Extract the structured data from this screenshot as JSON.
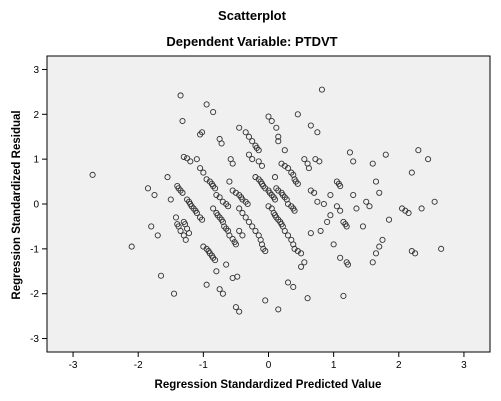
{
  "chart_data": {
    "type": "scatter",
    "title": "Scatterplot",
    "subtitle": "Dependent Variable: PTDVT",
    "xlabel": "Regression Standardized Predicted Value",
    "ylabel": "Regression Standardized Residual",
    "xlim": [
      -3.4,
      3.4
    ],
    "ylim": [
      -3.3,
      3.3
    ],
    "xticks": [
      -3,
      -2,
      -1,
      0,
      1,
      2,
      3
    ],
    "yticks": [
      -3,
      -2,
      -1,
      0,
      1,
      2,
      3
    ],
    "grid": false,
    "colors": {
      "plot_background": "#f0f0f0",
      "marker_stroke": "#333333",
      "axis": "#000000"
    },
    "points": [
      [
        -2.7,
        0.65
      ],
      [
        -2.1,
        -0.95
      ],
      [
        -1.85,
        0.35
      ],
      [
        -1.8,
        -0.5
      ],
      [
        -1.75,
        0.2
      ],
      [
        -1.7,
        -0.7
      ],
      [
        -1.65,
        -1.6
      ],
      [
        -1.55,
        0.6
      ],
      [
        -1.5,
        0.1
      ],
      [
        -1.45,
        -2.0
      ],
      [
        -1.4,
        0.4
      ],
      [
        -1.38,
        0.35
      ],
      [
        -1.35,
        0.3
      ],
      [
        -1.32,
        0.25
      ],
      [
        -1.42,
        -0.3
      ],
      [
        -1.4,
        -0.45
      ],
      [
        -1.38,
        -0.5
      ],
      [
        -1.35,
        -0.6
      ],
      [
        -1.3,
        -0.7
      ],
      [
        -1.27,
        -0.8
      ],
      [
        -1.35,
        2.42
      ],
      [
        -1.32,
        1.85
      ],
      [
        -1.3,
        1.05
      ],
      [
        -1.25,
        1.02
      ],
      [
        -1.2,
        0.95
      ],
      [
        -1.25,
        0.1
      ],
      [
        -1.22,
        0.05
      ],
      [
        -1.2,
        0.0
      ],
      [
        -1.18,
        -0.05
      ],
      [
        -1.15,
        -0.1
      ],
      [
        -1.12,
        -0.15
      ],
      [
        -1.1,
        -0.2
      ],
      [
        -1.05,
        -0.3
      ],
      [
        -1.02,
        -0.35
      ],
      [
        -1.3,
        -0.4
      ],
      [
        -1.28,
        -0.45
      ],
      [
        -1.25,
        -0.55
      ],
      [
        -1.22,
        -0.65
      ],
      [
        -1.1,
        1.0
      ],
      [
        -1.05,
        1.55
      ],
      [
        -1.02,
        1.6
      ],
      [
        -1.05,
        0.8
      ],
      [
        -1.0,
        0.7
      ],
      [
        -0.95,
        0.55
      ],
      [
        -0.9,
        0.5
      ],
      [
        -0.87,
        0.45
      ],
      [
        -0.85,
        0.4
      ],
      [
        -0.82,
        0.35
      ],
      [
        -0.95,
        2.22
      ],
      [
        -0.85,
        2.05
      ],
      [
        -0.75,
        1.45
      ],
      [
        -0.72,
        1.35
      ],
      [
        -0.8,
        0.2
      ],
      [
        -0.75,
        0.15
      ],
      [
        -0.7,
        0.05
      ],
      [
        -0.65,
        0.0
      ],
      [
        -0.62,
        -0.05
      ],
      [
        -1.0,
        -0.95
      ],
      [
        -0.95,
        -1.0
      ],
      [
        -0.92,
        -1.05
      ],
      [
        -0.9,
        -1.1
      ],
      [
        -0.87,
        -1.15
      ],
      [
        -0.85,
        -1.2
      ],
      [
        -0.82,
        -1.25
      ],
      [
        -0.95,
        -1.8
      ],
      [
        -0.8,
        -1.5
      ],
      [
        -0.75,
        -1.9
      ],
      [
        -0.7,
        -2.0
      ],
      [
        -0.65,
        -1.35
      ],
      [
        -0.55,
        -1.65
      ],
      [
        -0.5,
        -2.3
      ],
      [
        -0.45,
        -2.4
      ],
      [
        -0.48,
        -1.62
      ],
      [
        -0.85,
        -0.1
      ],
      [
        -0.8,
        -0.2
      ],
      [
        -0.78,
        -0.25
      ],
      [
        -0.75,
        -0.3
      ],
      [
        -0.72,
        -0.35
      ],
      [
        -0.7,
        -0.4
      ],
      [
        -0.68,
        -0.5
      ],
      [
        -0.65,
        -0.55
      ],
      [
        -0.62,
        -0.6
      ],
      [
        -0.6,
        -0.7
      ],
      [
        -0.55,
        -0.78
      ],
      [
        -0.52,
        -0.85
      ],
      [
        -0.5,
        -0.9
      ],
      [
        -0.58,
        1.0
      ],
      [
        -0.55,
        0.9
      ],
      [
        -0.6,
        0.5
      ],
      [
        -0.55,
        0.3
      ],
      [
        -0.5,
        0.25
      ],
      [
        -0.45,
        0.2
      ],
      [
        -0.42,
        0.15
      ],
      [
        -0.4,
        0.1
      ],
      [
        -0.35,
        0.05
      ],
      [
        -0.32,
        0.0
      ],
      [
        -0.45,
        1.7
      ],
      [
        -0.35,
        1.6
      ],
      [
        -0.3,
        1.5
      ],
      [
        -0.25,
        1.4
      ],
      [
        -0.2,
        1.3
      ],
      [
        -0.18,
        1.25
      ],
      [
        -0.15,
        1.2
      ],
      [
        -0.3,
        1.1
      ],
      [
        -0.25,
        1.0
      ],
      [
        -0.15,
        0.95
      ],
      [
        -0.1,
        0.85
      ],
      [
        -0.45,
        -0.1
      ],
      [
        -0.4,
        -0.2
      ],
      [
        -0.35,
        -0.3
      ],
      [
        -0.3,
        -0.4
      ],
      [
        -0.25,
        -0.5
      ],
      [
        -0.2,
        -0.6
      ],
      [
        -0.15,
        -0.7
      ],
      [
        -0.12,
        -0.8
      ],
      [
        -0.1,
        -0.9
      ],
      [
        -0.08,
        -1.0
      ],
      [
        -0.05,
        -1.05
      ],
      [
        -0.45,
        -0.6
      ],
      [
        -0.4,
        -0.7
      ],
      [
        -0.2,
        0.6
      ],
      [
        -0.15,
        0.55
      ],
      [
        -0.12,
        0.5
      ],
      [
        -0.1,
        0.45
      ],
      [
        -0.08,
        0.4
      ],
      [
        -0.05,
        0.35
      ],
      [
        0.0,
        0.3
      ],
      [
        0.02,
        0.25
      ],
      [
        0.05,
        0.2
      ],
      [
        0.08,
        0.15
      ],
      [
        0.1,
        0.1
      ],
      [
        0.0,
        1.95
      ],
      [
        0.05,
        1.85
      ],
      [
        0.12,
        1.7
      ],
      [
        0.15,
        1.5
      ],
      [
        0.25,
        1.2
      ],
      [
        0.15,
        1.4
      ],
      [
        0.2,
        0.9
      ],
      [
        0.25,
        0.85
      ],
      [
        0.3,
        0.8
      ],
      [
        0.35,
        0.7
      ],
      [
        0.38,
        0.65
      ],
      [
        0.4,
        0.55
      ],
      [
        0.42,
        0.5
      ],
      [
        0.45,
        0.45
      ],
      [
        0.1,
        0.6
      ],
      [
        0.12,
        0.35
      ],
      [
        0.15,
        0.3
      ],
      [
        0.2,
        0.25
      ],
      [
        0.22,
        0.2
      ],
      [
        0.25,
        0.15
      ],
      [
        0.28,
        0.1
      ],
      [
        0.3,
        0.0
      ],
      [
        0.35,
        -0.05
      ],
      [
        0.38,
        -0.1
      ],
      [
        0.4,
        -0.15
      ],
      [
        0.0,
        -0.05
      ],
      [
        0.05,
        -0.1
      ],
      [
        0.08,
        -0.2
      ],
      [
        0.1,
        -0.25
      ],
      [
        0.12,
        -0.3
      ],
      [
        0.15,
        -0.35
      ],
      [
        0.18,
        -0.4
      ],
      [
        0.2,
        -0.45
      ],
      [
        0.22,
        -0.5
      ],
      [
        0.25,
        -0.6
      ],
      [
        0.3,
        -0.7
      ],
      [
        0.35,
        -0.8
      ],
      [
        0.38,
        -0.9
      ],
      [
        0.4,
        -1.0
      ],
      [
        0.45,
        -1.05
      ],
      [
        0.5,
        -1.1
      ],
      [
        -0.05,
        -2.15
      ],
      [
        0.15,
        -2.35
      ],
      [
        0.3,
        -1.75
      ],
      [
        0.38,
        -1.85
      ],
      [
        0.5,
        -1.4
      ],
      [
        0.55,
        -1.3
      ],
      [
        0.6,
        -2.1
      ],
      [
        0.45,
        2.0
      ],
      [
        0.65,
        1.75
      ],
      [
        0.75,
        1.6
      ],
      [
        0.82,
        2.55
      ],
      [
        0.55,
        1.0
      ],
      [
        0.6,
        0.9
      ],
      [
        0.65,
        0.3
      ],
      [
        0.7,
        0.25
      ],
      [
        0.75,
        0.05
      ],
      [
        0.65,
        -0.65
      ],
      [
        0.72,
        1.0
      ],
      [
        0.78,
        0.95
      ],
      [
        0.62,
        0.8
      ],
      [
        1.05,
        0.5
      ],
      [
        1.08,
        0.45
      ],
      [
        1.1,
        0.4
      ],
      [
        1.05,
        -0.05
      ],
      [
        1.1,
        -0.15
      ],
      [
        1.15,
        -0.4
      ],
      [
        1.18,
        -0.45
      ],
      [
        1.2,
        -0.5
      ],
      [
        1.1,
        -1.2
      ],
      [
        1.15,
        -2.05
      ],
      [
        1.2,
        -1.3
      ],
      [
        1.22,
        -1.35
      ],
      [
        1.25,
        1.15
      ],
      [
        1.3,
        0.95
      ],
      [
        1.3,
        0.2
      ],
      [
        1.35,
        -0.1
      ],
      [
        1.45,
        -0.5
      ],
      [
        1.5,
        0.05
      ],
      [
        1.55,
        -0.05
      ],
      [
        1.6,
        0.9
      ],
      [
        1.65,
        0.5
      ],
      [
        1.7,
        0.25
      ],
      [
        1.8,
        1.1
      ],
      [
        1.85,
        -0.35
      ],
      [
        1.75,
        -0.8
      ],
      [
        1.7,
        -0.95
      ],
      [
        1.65,
        -1.1
      ],
      [
        1.6,
        -1.3
      ],
      [
        2.05,
        -0.1
      ],
      [
        2.1,
        -0.15
      ],
      [
        2.15,
        -0.2
      ],
      [
        2.2,
        0.7
      ],
      [
        2.2,
        -1.05
      ],
      [
        2.25,
        -1.1
      ],
      [
        2.3,
        1.2
      ],
      [
        2.35,
        -0.1
      ],
      [
        2.45,
        1.0
      ],
      [
        2.55,
        0.05
      ],
      [
        2.65,
        -1.0
      ],
      [
        0.8,
        -0.6
      ],
      [
        0.9,
        -0.4
      ],
      [
        0.95,
        -0.25
      ],
      [
        1.0,
        -0.9
      ],
      [
        0.85,
        0.0
      ],
      [
        0.95,
        0.2
      ]
    ]
  }
}
